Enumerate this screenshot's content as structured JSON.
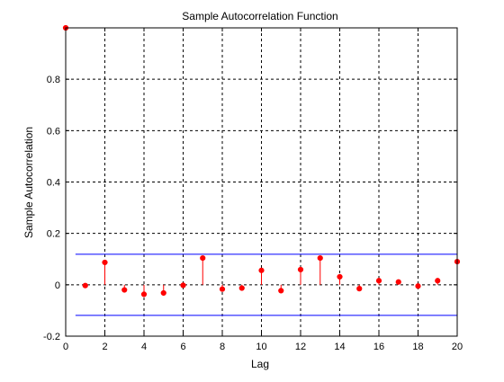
{
  "chart_data": {
    "type": "stem",
    "title": "Sample Autocorrelation Function",
    "xlabel": "Lag",
    "ylabel": "Sample Autocorrelation",
    "xlim": [
      0,
      20
    ],
    "ylim": [
      -0.2,
      1.0
    ],
    "x_ticks": [
      "0",
      "2",
      "4",
      "6",
      "8",
      "10",
      "12",
      "14",
      "16",
      "18",
      "20"
    ],
    "y_ticks": [
      "-0.2",
      "0",
      "0.2",
      "0.4",
      "0.6",
      "0.8"
    ],
    "grid": true,
    "series": [
      {
        "x": [
          0,
          1,
          2,
          3,
          4,
          5,
          6,
          7,
          8,
          9,
          10,
          11,
          12,
          13,
          14,
          15,
          16,
          17,
          18,
          19,
          20
        ],
        "values": [
          1.0,
          -0.003,
          0.087,
          -0.02,
          -0.037,
          -0.032,
          -0.002,
          0.104,
          -0.017,
          -0.013,
          0.056,
          -0.023,
          0.059,
          0.104,
          0.031,
          -0.015,
          0.016,
          0.011,
          -0.005,
          0.016,
          0.09
        ],
        "color": "#ff0000"
      }
    ],
    "confidence_bounds": {
      "upper": 0.119,
      "lower": -0.119,
      "x_range": [
        0.5,
        20
      ],
      "color": "#0000ff"
    }
  }
}
